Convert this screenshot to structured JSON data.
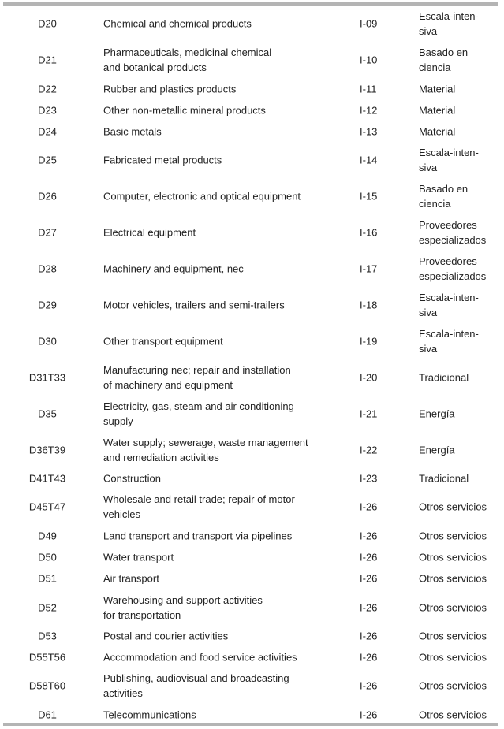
{
  "rows": [
    {
      "code": "D20",
      "desc": "Chemical and chemical products",
      "ind": "I-09",
      "cat": "Escala-inten-\nsiva"
    },
    {
      "code": "D21",
      "desc": "Pharmaceuticals, medicinal chemical\nand botanical products",
      "ind": "I-10",
      "cat": "Basado en\nciencia"
    },
    {
      "code": "D22",
      "desc": "Rubber and plastics products",
      "ind": "I-11",
      "cat": "Material"
    },
    {
      "code": "D23",
      "desc": "Other non-metallic mineral products",
      "ind": "I-12",
      "cat": "Material"
    },
    {
      "code": "D24",
      "desc": "Basic metals",
      "ind": "I-13",
      "cat": "Material"
    },
    {
      "code": "D25",
      "desc": "Fabricated metal products",
      "ind": "I-14",
      "cat": "Escala-inten-\nsiva"
    },
    {
      "code": "D26",
      "desc": "Computer, electronic and optical equipment",
      "ind": "I-15",
      "cat": "Basado en\nciencia"
    },
    {
      "code": "D27",
      "desc": "Electrical equipment",
      "ind": "I-16",
      "cat": "Proveedores\nespecializados"
    },
    {
      "code": "D28",
      "desc": "Machinery and equipment, nec",
      "ind": "I-17",
      "cat": "Proveedores\nespecializados"
    },
    {
      "code": "D29",
      "desc": "Motor vehicles, trailers and semi-trailers",
      "ind": "I-18",
      "cat": "Escala-inten-\nsiva"
    },
    {
      "code": "D30",
      "desc": "Other transport equipment",
      "ind": "I-19",
      "cat": "Escala-inten-\nsiva"
    },
    {
      "code": "D31T33",
      "desc": "Manufacturing nec; repair and installation\nof machinery and equipment",
      "ind": "I-20",
      "cat": "Tradicional"
    },
    {
      "code": "D35",
      "desc": "Electricity, gas, steam and air conditioning\nsupply",
      "ind": "I-21",
      "cat": "Energía"
    },
    {
      "code": "D36T39",
      "desc": "Water supply; sewerage, waste management\nand remediation activities",
      "ind": "I-22",
      "cat": "Energía"
    },
    {
      "code": "D41T43",
      "desc": "Construction",
      "ind": "I-23",
      "cat": "Tradicional"
    },
    {
      "code": "D45T47",
      "desc": "Wholesale and retail trade; repair of motor\nvehicles",
      "ind": "I-26",
      "cat": "Otros servicios"
    },
    {
      "code": "D49",
      "desc": "Land transport and transport via pipelines",
      "ind": "I-26",
      "cat": "Otros servicios"
    },
    {
      "code": "D50",
      "desc": "Water transport",
      "ind": "I-26",
      "cat": "Otros servicios"
    },
    {
      "code": "D51",
      "desc": "Air transport",
      "ind": "I-26",
      "cat": "Otros servicios"
    },
    {
      "code": "D52",
      "desc": "Warehousing and support activities\nfor transportation",
      "ind": "I-26",
      "cat": "Otros servicios"
    },
    {
      "code": "D53",
      "desc": "Postal and courier activities",
      "ind": "I-26",
      "cat": "Otros servicios"
    },
    {
      "code": "D55T56",
      "desc": "Accommodation and food service activities",
      "ind": "I-26",
      "cat": "Otros servicios"
    },
    {
      "code": "D58T60",
      "desc": "Publishing, audiovisual and broadcasting\nactivities",
      "ind": "I-26",
      "cat": "Otros servicios"
    },
    {
      "code": "D61",
      "desc": "Telecommunications",
      "ind": "I-26",
      "cat": "Otros servicios"
    }
  ]
}
